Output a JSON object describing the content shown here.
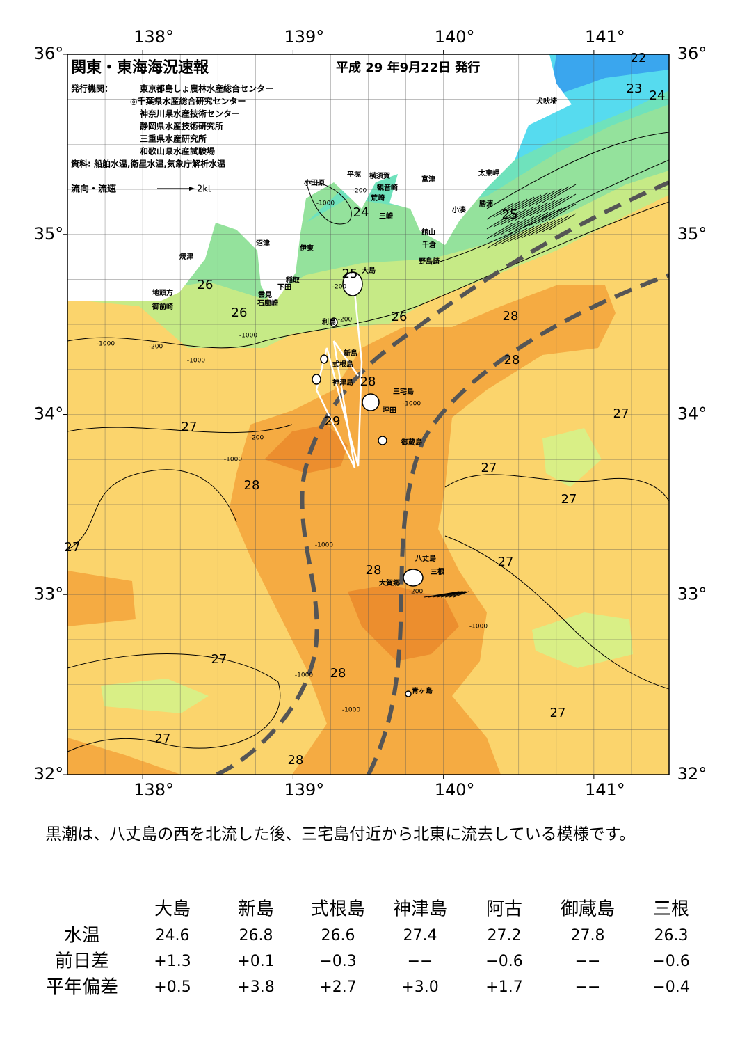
{
  "header": {
    "title": "関東・東海海況速報",
    "date": "平成 29 年9月22日 発行",
    "issuers_label": "発行機関：",
    "issuers": [
      "東京都島しょ農林水産総合センター",
      "◎千葉県水産総合研究センター",
      "神奈川県水産技術センター",
      "静岡県水産技術研究所",
      "三重県水産研究所",
      "和歌山県水産試験場"
    ],
    "source": "資料: 船舶水温,衛星水温,気象庁解析水温",
    "legend_label": "流向・流速",
    "legend_speed": "2kt"
  },
  "map": {
    "lon_ticks": [
      {
        "value": 138,
        "label": "138°"
      },
      {
        "value": 139,
        "label": "139°"
      },
      {
        "value": 140,
        "label": "140°"
      },
      {
        "value": 141,
        "label": "141°"
      }
    ],
    "lat_ticks": [
      {
        "value": 36,
        "label": "36°"
      },
      {
        "value": 35,
        "label": "35°"
      },
      {
        "value": 34,
        "label": "34°"
      },
      {
        "value": 33,
        "label": "33°"
      },
      {
        "value": 32,
        "label": "32°"
      }
    ],
    "lonlim": [
      137.5,
      141.5
    ],
    "latlim": [
      32,
      36
    ],
    "isotherm_labels": [
      "22",
      "23",
      "24",
      "24",
      "25",
      "25",
      "26",
      "26",
      "26",
      "28",
      "28",
      "28",
      "29",
      "27",
      "27",
      "28",
      "27",
      "27",
      "27",
      "27",
      "28",
      "27",
      "28",
      "27",
      "27",
      "28"
    ],
    "depth_labels": [
      "-1000",
      "-200",
      "-1000",
      "-1000",
      "-200",
      "-200",
      "-200",
      "-1000",
      "-1000",
      "-1000",
      "-1000",
      "-1000",
      "-1000",
      "-200",
      "-200",
      "-1000"
    ],
    "places": [
      "犬吠埼",
      "太東岬",
      "勝浦",
      "小湊",
      "富津",
      "横須賀",
      "観音崎",
      "平塚",
      "小田原",
      "荒崎",
      "三崎",
      "館山",
      "千倉",
      "野島崎",
      "沼津",
      "伊東",
      "焼津",
      "稲取",
      "下田",
      "雲見",
      "石廊崎",
      "地頭方",
      "御前崎",
      "大島",
      "利島",
      "新島",
      "式根島",
      "神津島",
      "三宅島",
      "坪田",
      "御蔵島",
      "八丈島",
      "三根",
      "大賀郷",
      "青ヶ島"
    ]
  },
  "summary": "黒潮は、八丈島の西を北流した後、三宅島付近から北東に流去している模様です。",
  "table": {
    "columns": [
      "大島",
      "新島",
      "式根島",
      "神津島",
      "阿古",
      "御蔵島",
      "三根"
    ],
    "rows": [
      [
        "水温",
        "24.6",
        "26.8",
        "26.6",
        "27.4",
        "27.2",
        "27.8",
        "26.3"
      ],
      [
        "前日差",
        "+1.3",
        "+0.1",
        "−0.3",
        "−−",
        "−0.6",
        "−−",
        "−0.6"
      ],
      [
        "平年偏差",
        "+0.5",
        "+3.8",
        "+2.7",
        "+3.0",
        "+1.7",
        "−−",
        "−0.4"
      ]
    ]
  }
}
